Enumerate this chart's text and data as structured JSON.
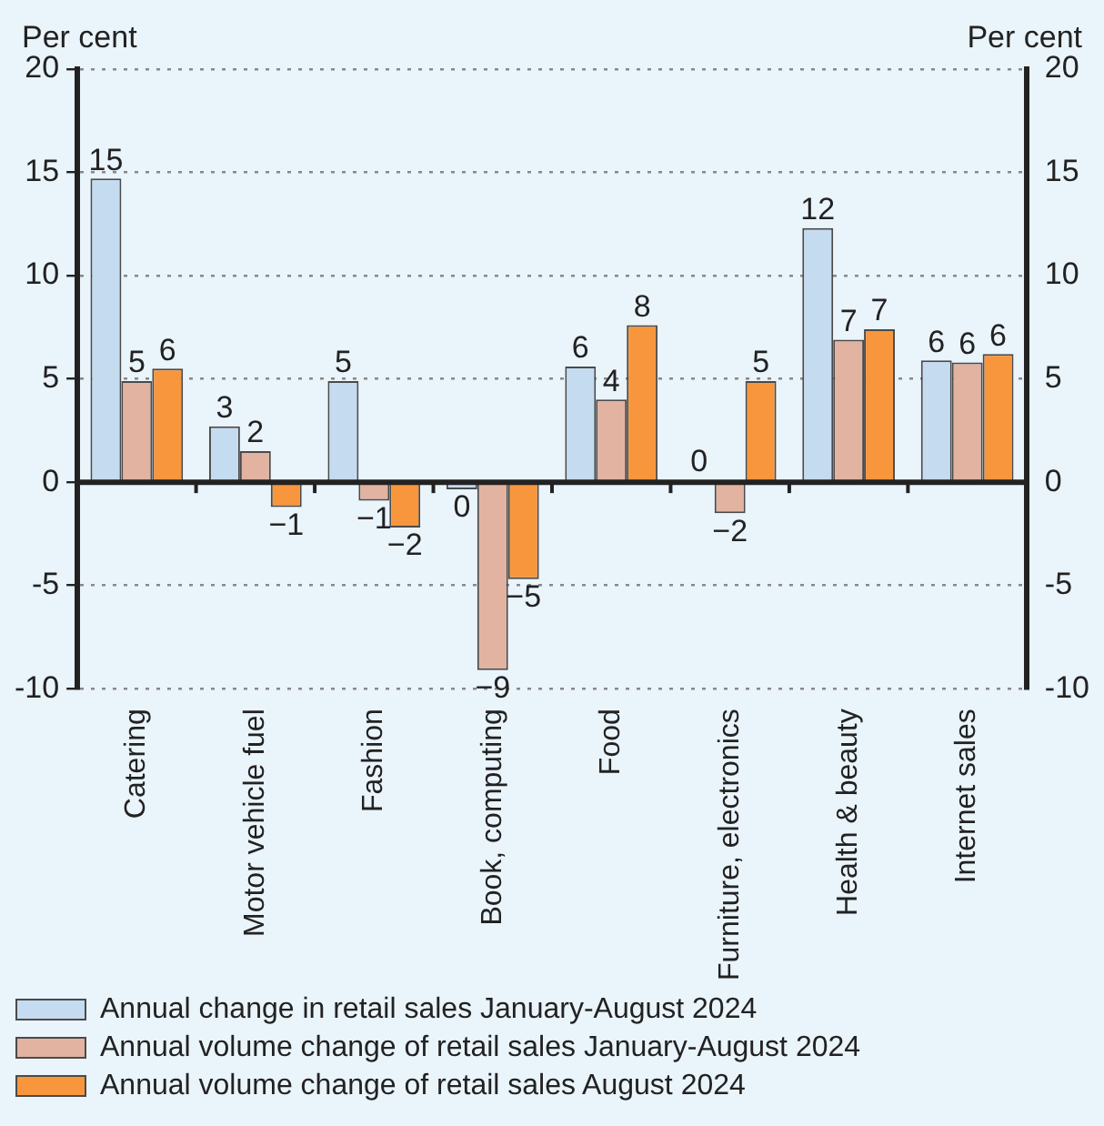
{
  "chart_data": {
    "type": "bar",
    "ylabel": "Per cent",
    "y2label": "Per cent",
    "categories": [
      "Catering",
      "Motor vehicle fuel",
      "Fashion",
      "Book, computing",
      "Food",
      "Furniture, electronics",
      "Health & beauty",
      "Internet sales"
    ],
    "series": [
      {
        "name": "Annual change in retail sales January-August 2024",
        "color": "#c5dcf0",
        "values": [
          14.7,
          2.7,
          4.9,
          -0.35,
          5.6,
          0.1,
          12.3,
          5.9
        ],
        "value_labels": [
          "15",
          "3",
          "5",
          "0",
          "6",
          "0",
          "12",
          "6"
        ]
      },
      {
        "name": "Annual volume change of retail sales January-August 2024",
        "color": "#e2b3a0",
        "values": [
          4.9,
          1.5,
          -0.9,
          -9.1,
          4.0,
          -1.5,
          6.9,
          5.8
        ],
        "value_labels": [
          "5",
          "2",
          "−1",
          "−9",
          "4",
          "−2",
          "7",
          "6"
        ]
      },
      {
        "name": "Annual volume change of retail sales August 2024",
        "color": "#f7963c",
        "values": [
          5.5,
          -1.2,
          -2.2,
          -4.7,
          7.6,
          4.9,
          7.4,
          6.2
        ],
        "value_labels": [
          "6",
          "−1",
          "−2",
          "−5",
          "8",
          "5",
          "7",
          "6"
        ]
      }
    ],
    "ylim": [
      -10,
      20
    ],
    "yticks": [
      -10,
      -5,
      0,
      5,
      10,
      15,
      20
    ],
    "y2lim": [
      -10,
      20
    ],
    "y2ticks": [
      -10,
      -5,
      0,
      5,
      10,
      15,
      20
    ],
    "grid": "y",
    "legend": "bottom"
  }
}
